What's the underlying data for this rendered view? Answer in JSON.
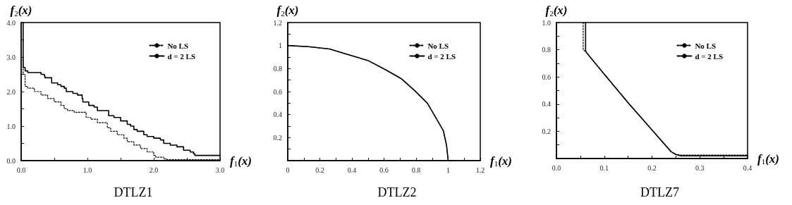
{
  "chart_data": [
    {
      "type": "step",
      "title": "DTLZ1",
      "xlabel": "f$_{1}$(x)",
      "ylabel": "f$_{2}$(x)",
      "xlim": [
        0,
        3
      ],
      "ylim": [
        0,
        4
      ],
      "xticks": [
        {
          "value": 0,
          "label": "0.0"
        },
        {
          "value": 0.5,
          "label": null
        },
        {
          "value": 1,
          "label": "1.0"
        },
        {
          "value": 1.5,
          "label": null
        },
        {
          "value": 2,
          "label": "2.0"
        },
        {
          "value": 2.5,
          "label": null
        },
        {
          "value": 3,
          "label": "3.0"
        }
      ],
      "yticks": [
        {
          "value": 0,
          "label": "0.0"
        },
        {
          "value": 0.5,
          "label": null
        },
        {
          "value": 1,
          "label": "1.0"
        },
        {
          "value": 1.5,
          "label": null
        },
        {
          "value": 2,
          "label": "2.0"
        },
        {
          "value": 2.5,
          "label": null
        },
        {
          "value": 3,
          "label": "3.0"
        },
        {
          "value": 3.5,
          "label": null
        },
        {
          "value": 4,
          "label": "4.0"
        }
      ],
      "grid": false,
      "legend": "top right",
      "marker": "none",
      "series": [
        {
          "name": "No LS",
          "color": "#000000",
          "line_style": "dotted",
          "x": [
            0.03,
            0.03,
            0.06,
            0.06,
            0.1,
            0.2,
            0.3,
            0.4,
            0.5,
            0.6,
            0.65,
            0.7,
            0.8,
            0.95,
            0.98,
            1.05,
            1.15,
            1.25,
            1.3,
            1.35,
            1.45,
            1.55,
            1.6,
            1.7,
            1.8,
            1.9,
            2.0,
            2.03,
            2.15,
            2.2,
            3.0
          ],
          "values": [
            2.9,
            2.5,
            2.4,
            2.15,
            2.1,
            2.0,
            1.9,
            1.8,
            1.7,
            1.6,
            1.5,
            1.45,
            1.4,
            1.4,
            1.25,
            1.2,
            1.1,
            1.1,
            0.95,
            0.85,
            0.75,
            0.65,
            0.55,
            0.45,
            0.35,
            0.25,
            0.15,
            0.1,
            0.05,
            0.03,
            0.03
          ]
        },
        {
          "name": "d = 2 LS",
          "color": "#000000",
          "line_style": "solid",
          "x": [
            0.03,
            0.03,
            0.06,
            0.1,
            0.3,
            0.35,
            0.36,
            0.45,
            0.46,
            0.55,
            0.6,
            0.65,
            0.68,
            0.78,
            0.85,
            0.92,
            0.93,
            1.02,
            1.1,
            1.15,
            1.3,
            1.32,
            1.4,
            1.5,
            1.6,
            1.65,
            1.7,
            1.75,
            1.85,
            1.9,
            2.0,
            2.1,
            2.15,
            2.25,
            2.35,
            2.45,
            2.55,
            2.6,
            2.62,
            3.0
          ],
          "values": [
            4.0,
            2.7,
            2.6,
            2.55,
            2.5,
            2.45,
            2.4,
            2.4,
            2.25,
            2.2,
            2.15,
            2.1,
            2.0,
            1.95,
            1.9,
            1.8,
            1.7,
            1.6,
            1.55,
            1.45,
            1.45,
            1.3,
            1.25,
            1.15,
            1.05,
            1.0,
            0.9,
            0.85,
            0.75,
            0.7,
            0.65,
            0.6,
            0.5,
            0.45,
            0.4,
            0.3,
            0.25,
            0.2,
            0.15,
            0.15
          ]
        }
      ]
    },
    {
      "type": "line",
      "title": "DTLZ2",
      "xlabel": "f$_{1}$(x)",
      "ylabel": "f$_{2}$(x)",
      "xlim": [
        0,
        1.2
      ],
      "ylim": [
        0,
        1.2
      ],
      "xticks": [
        0,
        {
          "value": 0.1,
          "label": null
        },
        0.2,
        {
          "value": 0.3,
          "label": null
        },
        0.4,
        {
          "value": 0.5,
          "label": null
        },
        0.6,
        {
          "value": 0.7,
          "label": null
        },
        0.8,
        {
          "value": 0.9,
          "label": null
        },
        1,
        {
          "value": 1.1,
          "label": null
        },
        1.2
      ],
      "yticks": [
        {
          "value": 0,
          "label": null
        },
        {
          "value": 0.1,
          "label": null
        },
        0.2,
        {
          "value": 0.3,
          "label": null
        },
        0.4,
        {
          "value": 0.5,
          "label": null
        },
        0.6,
        {
          "value": 0.7,
          "label": null
        },
        0.8,
        {
          "value": 0.9,
          "label": null
        },
        1,
        {
          "value": 1.1,
          "label": null
        },
        1.2
      ],
      "grid": false,
      "legend": "top right",
      "marker": "none",
      "series": [
        {
          "name": "No LS",
          "color": "#000000",
          "line_style": "dotted",
          "x": [
            0,
            0.13,
            0.26,
            0.38,
            0.5,
            0.61,
            0.71,
            0.79,
            0.87,
            0.92,
            0.97,
            0.99,
            1.0,
            1.03
          ],
          "values": [
            1.0,
            0.99,
            0.97,
            0.92,
            0.87,
            0.79,
            0.71,
            0.61,
            0.5,
            0.38,
            0.26,
            0.13,
            0,
            0
          ]
        },
        {
          "name": "d = 2 LS",
          "color": "#000000",
          "line_style": "solid",
          "x": [
            0,
            0.13,
            0.26,
            0.38,
            0.5,
            0.61,
            0.71,
            0.79,
            0.87,
            0.92,
            0.97,
            0.99,
            1.0,
            1.03
          ],
          "values": [
            1.0,
            0.99,
            0.97,
            0.92,
            0.87,
            0.79,
            0.71,
            0.61,
            0.5,
            0.38,
            0.26,
            0.13,
            0,
            0
          ]
        }
      ]
    },
    {
      "type": "line",
      "title": "DTLZ7",
      "xlabel": "f$_{1}$(x)",
      "ylabel": "f$_{2}$(x)",
      "xlim": [
        0,
        0.4
      ],
      "ylim": [
        0,
        1.0
      ],
      "xticks": [
        {
          "value": 0,
          "label": "0.0"
        },
        {
          "value": 0.05,
          "label": null
        },
        0.1,
        {
          "value": 0.15,
          "label": null
        },
        0.2,
        {
          "value": 0.25,
          "label": null
        },
        0.3,
        {
          "value": 0.35,
          "label": null
        },
        0.4
      ],
      "yticks": [
        {
          "value": 0,
          "label": null
        },
        {
          "value": 0.1,
          "label": null
        },
        0.2,
        {
          "value": 0.3,
          "label": null
        },
        0.4,
        {
          "value": 0.5,
          "label": null
        },
        0.6,
        {
          "value": 0.7,
          "label": null
        },
        0.8,
        {
          "value": 0.9,
          "label": null
        },
        {
          "value": 1.0,
          "label": "1.0"
        }
      ],
      "grid": false,
      "legend": "top right",
      "marker": "none",
      "series": [
        {
          "name": "No LS",
          "color": "#000000",
          "line_style": "dotted",
          "x": [
            0.056,
            0.056,
            0.06,
            0.065,
            0.1,
            0.15,
            0.2,
            0.24,
            0.25,
            0.26,
            0.4
          ],
          "values": [
            1.0,
            0.8,
            0.79,
            0.77,
            0.62,
            0.41,
            0.21,
            0.05,
            0.03,
            0.025,
            0.025
          ]
        },
        {
          "name": "d = 2 LS",
          "color": "#000000",
          "line_style": "solid",
          "x": [
            0.061,
            0.061,
            0.065,
            0.1,
            0.15,
            0.2,
            0.24,
            0.25,
            0.26,
            0.4
          ],
          "values": [
            1.0,
            0.79,
            0.77,
            0.62,
            0.41,
            0.21,
            0.05,
            0.03,
            0.02,
            0.02
          ]
        }
      ]
    }
  ]
}
